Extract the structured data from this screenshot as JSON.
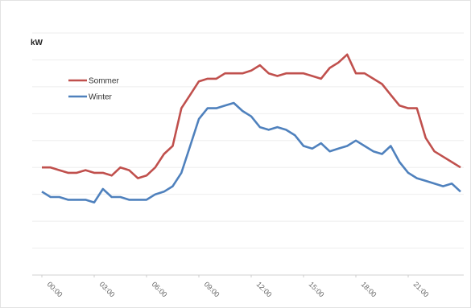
{
  "chart_data": {
    "type": "line",
    "y_label": "kW",
    "x": [
      0,
      0.5,
      1,
      1.5,
      2,
      2.5,
      3,
      3.5,
      4,
      4.5,
      5,
      5.5,
      6,
      6.5,
      7,
      7.5,
      8,
      8.5,
      9,
      9.5,
      10,
      10.5,
      11,
      11.5,
      12,
      12.5,
      13,
      13.5,
      14,
      14.5,
      15,
      15.5,
      16,
      16.5,
      17,
      17.5,
      18,
      18.5,
      19,
      19.5,
      20,
      20.5,
      21,
      21.5,
      22,
      22.5,
      23,
      23.5,
      24
    ],
    "xlim": [
      0,
      24
    ],
    "xticks": [
      {
        "value": 0,
        "label": "00:00"
      },
      {
        "value": 3,
        "label": "03:00"
      },
      {
        "value": 6,
        "label": "06:00"
      },
      {
        "value": 9,
        "label": "09:00"
      },
      {
        "value": 12,
        "label": "12:00"
      },
      {
        "value": 15,
        "label": "15:00"
      },
      {
        "value": 18,
        "label": "18:00"
      },
      {
        "value": 21,
        "label": "21:00"
      }
    ],
    "ylim": [
      0,
      9
    ],
    "grid": true,
    "legend": "upper left",
    "series": [
      {
        "name": "Sommer",
        "color": "#c0504d",
        "values": [
          4.0,
          4.0,
          3.9,
          3.8,
          3.8,
          3.9,
          3.8,
          3.8,
          3.7,
          4.0,
          3.9,
          3.6,
          3.7,
          4.0,
          4.5,
          4.8,
          6.2,
          6.7,
          7.2,
          7.3,
          7.3,
          7.5,
          7.5,
          7.5,
          7.6,
          7.8,
          7.5,
          7.4,
          7.5,
          7.5,
          7.5,
          7.4,
          7.3,
          7.7,
          7.9,
          8.2,
          7.5,
          7.5,
          7.3,
          7.1,
          6.7,
          6.3,
          6.2,
          6.2,
          5.1,
          4.6,
          4.4,
          4.2,
          4.0
        ]
      },
      {
        "name": "Winter",
        "color": "#4f81bd",
        "values": [
          3.1,
          2.9,
          2.9,
          2.8,
          2.8,
          2.8,
          2.7,
          3.2,
          2.9,
          2.9,
          2.8,
          2.8,
          2.8,
          3.0,
          3.1,
          3.3,
          3.8,
          4.8,
          5.8,
          6.2,
          6.2,
          6.3,
          6.4,
          6.1,
          5.9,
          5.5,
          5.4,
          5.5,
          5.4,
          5.2,
          4.8,
          4.7,
          4.9,
          4.6,
          4.7,
          4.8,
          5.0,
          4.8,
          4.6,
          4.5,
          4.8,
          4.2,
          3.8,
          3.6,
          3.5,
          3.4,
          3.3,
          3.4,
          3.1
        ]
      }
    ]
  }
}
